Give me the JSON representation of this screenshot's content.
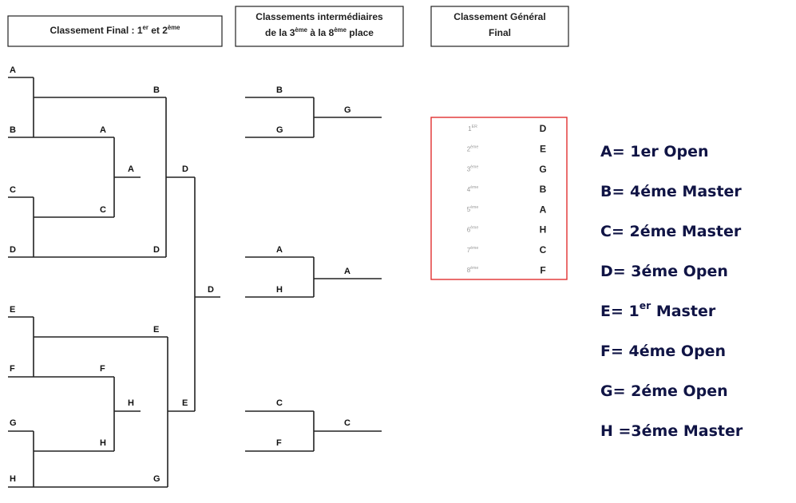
{
  "headers": [
    [
      [
        "Classement Final : 1",
        {
          "sup": "er"
        },
        " et 2",
        {
          "sup": "ème"
        }
      ]
    ],
    [
      [
        "Classements intermédiaires"
      ],
      [
        "de la 3",
        {
          "sup": "ème"
        },
        " à la 8",
        {
          "sup": "ème"
        },
        " place"
      ]
    ],
    [
      [
        "Classement Général"
      ],
      [
        "Final"
      ]
    ]
  ],
  "bracket": {
    "labels": [
      "A",
      "B",
      "B",
      "A",
      "A",
      "D",
      "C",
      "C",
      "D",
      "D",
      "D",
      "E",
      "E",
      "F",
      "F",
      "H",
      "E",
      "G",
      "H",
      "H",
      "G",
      "B",
      "G",
      "G",
      "A",
      "A",
      "H",
      "C",
      "C",
      "F"
    ]
  },
  "ranking": [
    {
      "rank": [
        "1",
        {
          "sup": "ER"
        }
      ],
      "team": "D"
    },
    {
      "rank": [
        "2",
        {
          "sup": "ème"
        }
      ],
      "team": "E"
    },
    {
      "rank": [
        "3",
        {
          "sup": "ème"
        }
      ],
      "team": "G"
    },
    {
      "rank": [
        "4",
        {
          "sup": "ème"
        }
      ],
      "team": "B"
    },
    {
      "rank": [
        "5",
        {
          "sup": "ème"
        }
      ],
      "team": "A"
    },
    {
      "rank": [
        "6",
        {
          "sup": "ème"
        }
      ],
      "team": "H"
    },
    {
      "rank": [
        "7",
        {
          "sup": "ème"
        }
      ],
      "team": "C"
    },
    {
      "rank": [
        "8",
        {
          "sup": "ème"
        }
      ],
      "team": "F"
    }
  ],
  "legend": [
    [
      "A= 1er Open"
    ],
    [
      "B= 4éme Master"
    ],
    [
      "C= 2éme Master"
    ],
    [
      "D= 3éme Open"
    ],
    [
      "E= 1",
      {
        "sup": "er"
      },
      " Master"
    ],
    [
      "F= 4éme Open"
    ],
    [
      "G= 2éme Open"
    ],
    [
      "H =3éme Master"
    ]
  ]
}
